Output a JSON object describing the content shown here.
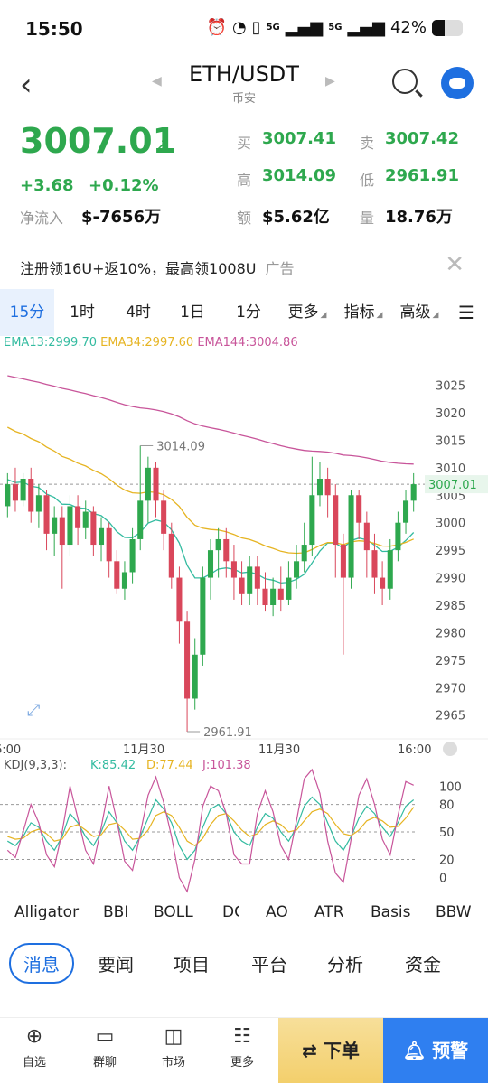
{
  "status": {
    "time": "15:50",
    "network": "5G",
    "battery": "42%",
    "battery_fraction": 0.42
  },
  "nav": {
    "pair": "ETH/USDT",
    "exchange": "币安"
  },
  "ticker": {
    "price": "3007.01",
    "change_abs": "+3.68",
    "change_pct": "+0.12%",
    "net_inflow_label": "净流入",
    "net_inflow": "$-7656万",
    "buy_label": "买",
    "buy": "3007.41",
    "sell_label": "卖",
    "sell": "3007.42",
    "high_label": "高",
    "high": "3014.09",
    "low_label": "低",
    "low": "2961.91",
    "amount_label": "额",
    "amount": "$5.62亿",
    "volume_label": "量",
    "volume": "18.76万"
  },
  "ad": {
    "text": "注册领16U+返10%，最高领1008U",
    "tag": "广告"
  },
  "timeframes": [
    "15分",
    "1时",
    "4时",
    "1日",
    "1分",
    "更多",
    "指标",
    "高级"
  ],
  "ema": {
    "ema13": "EMA13:2999.70",
    "ema34": "EMA34:2997.60",
    "ema144": "EMA144:3004.86"
  },
  "chart_data": [
    {
      "type": "candlestick",
      "y_ticks": [
        "3025",
        "3020",
        "3015",
        "3010",
        "3005",
        "3000",
        "2995",
        "2990",
        "2985",
        "2980",
        "2975",
        "2970",
        "2965"
      ],
      "ylim": [
        2962,
        3031
      ],
      "x_ticks": [
        "6:00",
        "11月30",
        "11月30",
        "16:00"
      ],
      "current_price_label": "3007.01",
      "high_annotation": "3014.09",
      "low_annotation": "2961.91",
      "candles": [
        [
          3003,
          3007,
          3001,
          3009
        ],
        [
          3007,
          3004,
          3002,
          3010
        ],
        [
          3004,
          3008,
          3003,
          3009
        ],
        [
          3008,
          3002,
          3000,
          3010
        ],
        [
          3002,
          3005,
          2999,
          3007
        ],
        [
          3005,
          2998,
          2995,
          3006
        ],
        [
          2998,
          3001,
          2994,
          3003
        ],
        [
          3001,
          2996,
          2988,
          3003
        ],
        [
          2996,
          3003,
          2994,
          3005
        ],
        [
          3003,
          2999,
          2996,
          3005
        ],
        [
          2999,
          3002,
          2997,
          3004
        ],
        [
          3002,
          2996,
          2994,
          3003
        ],
        [
          2996,
          2999,
          2993,
          3001
        ],
        [
          2999,
          2993,
          2990,
          3000
        ],
        [
          2993,
          2988,
          2987,
          2995
        ],
        [
          2988,
          2991,
          2986,
          2993
        ],
        [
          2991,
          2997,
          2989,
          2999
        ],
        [
          2997,
          3004,
          2995,
          3014
        ],
        [
          3004,
          3010,
          3000,
          3012
        ],
        [
          3010,
          3004,
          3001,
          3011
        ],
        [
          3004,
          2998,
          2995,
          3006
        ],
        [
          2998,
          2990,
          2988,
          3000
        ],
        [
          2990,
          2982,
          2978,
          2992
        ],
        [
          2982,
          2968,
          2962,
          2984
        ],
        [
          2968,
          2976,
          2966,
          2979
        ],
        [
          2976,
          2990,
          2974,
          2992
        ],
        [
          2990,
          2995,
          2986,
          2997
        ],
        [
          2995,
          2997,
          2990,
          2999
        ],
        [
          2997,
          2993,
          2990,
          2999
        ],
        [
          2993,
          2990,
          2986,
          2996
        ],
        [
          2990,
          2987,
          2985,
          2993
        ],
        [
          2987,
          2992,
          2985,
          2994
        ],
        [
          2992,
          2988,
          2985,
          2994
        ],
        [
          2988,
          2985,
          2984,
          2991
        ],
        [
          2985,
          2988,
          2983,
          2990
        ],
        [
          2988,
          2986,
          2984,
          2992
        ],
        [
          2986,
          2990,
          2985,
          2993
        ],
        [
          2990,
          2993,
          2988,
          2996
        ],
        [
          2993,
          2996,
          2991,
          3000
        ],
        [
          2996,
          3005,
          2994,
          3012
        ],
        [
          3005,
          3008,
          3003,
          3011
        ],
        [
          3008,
          3005,
          3001,
          3010
        ],
        [
          3005,
          2996,
          2990,
          3007
        ],
        [
          2996,
          2990,
          2976,
          2998
        ],
        [
          2990,
          3005,
          2988,
          3006
        ],
        [
          3005,
          3000,
          2997,
          3006
        ],
        [
          3000,
          2995,
          2990,
          3002
        ],
        [
          2995,
          2990,
          2987,
          2998
        ],
        [
          2990,
          2988,
          2985,
          2993
        ],
        [
          2988,
          2995,
          2986,
          2997
        ],
        [
          2995,
          3000,
          2993,
          3002
        ],
        [
          3000,
          3004,
          2998,
          3006
        ],
        [
          3004,
          3007,
          3002,
          3009
        ]
      ]
    },
    {
      "type": "line",
      "title": "KDJ(9,3,3):",
      "series": [
        {
          "name": "K:85.42",
          "values": [
            40,
            35,
            45,
            60,
            55,
            40,
            30,
            45,
            70,
            60,
            45,
            35,
            50,
            72,
            60,
            40,
            30,
            45,
            65,
            85,
            75,
            60,
            35,
            20,
            30,
            55,
            75,
            80,
            70,
            50,
            40,
            35,
            55,
            70,
            65,
            50,
            40,
            55,
            78,
            88,
            80,
            60,
            40,
            30,
            45,
            65,
            78,
            70,
            55,
            45,
            60,
            78,
            85
          ]
        },
        {
          "name": "D:77.44",
          "values": [
            45,
            42,
            43,
            50,
            53,
            48,
            40,
            42,
            55,
            58,
            52,
            45,
            47,
            58,
            60,
            52,
            42,
            43,
            52,
            68,
            72,
            68,
            55,
            40,
            35,
            43,
            58,
            68,
            70,
            62,
            52,
            45,
            48,
            58,
            62,
            58,
            50,
            52,
            62,
            72,
            75,
            70,
            58,
            48,
            46,
            52,
            62,
            66,
            62,
            55,
            56,
            65,
            77
          ]
        },
        {
          "name": "J:101.38",
          "values": [
            30,
            22,
            50,
            80,
            60,
            25,
            12,
            50,
            100,
            65,
            30,
            15,
            55,
            100,
            62,
            18,
            8,
            48,
            90,
            110,
            82,
            45,
            0,
            -15,
            20,
            78,
            100,
            95,
            70,
            25,
            15,
            15,
            70,
            95,
            72,
            35,
            20,
            62,
            108,
            118,
            92,
            40,
            5,
            -5,
            42,
            90,
            108,
            80,
            42,
            25,
            68,
            105,
            101
          ]
        }
      ],
      "y_ticks": [
        "100",
        "80",
        "50",
        "20",
        "0"
      ],
      "ylim": [
        -18,
        120
      ]
    }
  ],
  "indicators": [
    "Alligator",
    "BBI",
    "BOLL",
    "DC",
    "AO",
    "ATR",
    "Basis",
    "BBW"
  ],
  "news_tabs": [
    "消息",
    "要闻",
    "项目",
    "平台",
    "分析",
    "资金"
  ],
  "bottom": {
    "tabs": [
      {
        "label": "自选",
        "icon": "plus-circle-icon"
      },
      {
        "label": "群聊",
        "icon": "chat-icon"
      },
      {
        "label": "市场",
        "icon": "chart-icon"
      },
      {
        "label": "更多",
        "icon": "more-icon"
      }
    ],
    "order": "下单",
    "alert": "预警"
  },
  "colors": {
    "up": "#2ea84e",
    "down": "#d9475b",
    "ema13": "#33bba0",
    "ema34": "#e6b422",
    "ema144": "#c8559a",
    "accent": "#1e6fe0"
  }
}
